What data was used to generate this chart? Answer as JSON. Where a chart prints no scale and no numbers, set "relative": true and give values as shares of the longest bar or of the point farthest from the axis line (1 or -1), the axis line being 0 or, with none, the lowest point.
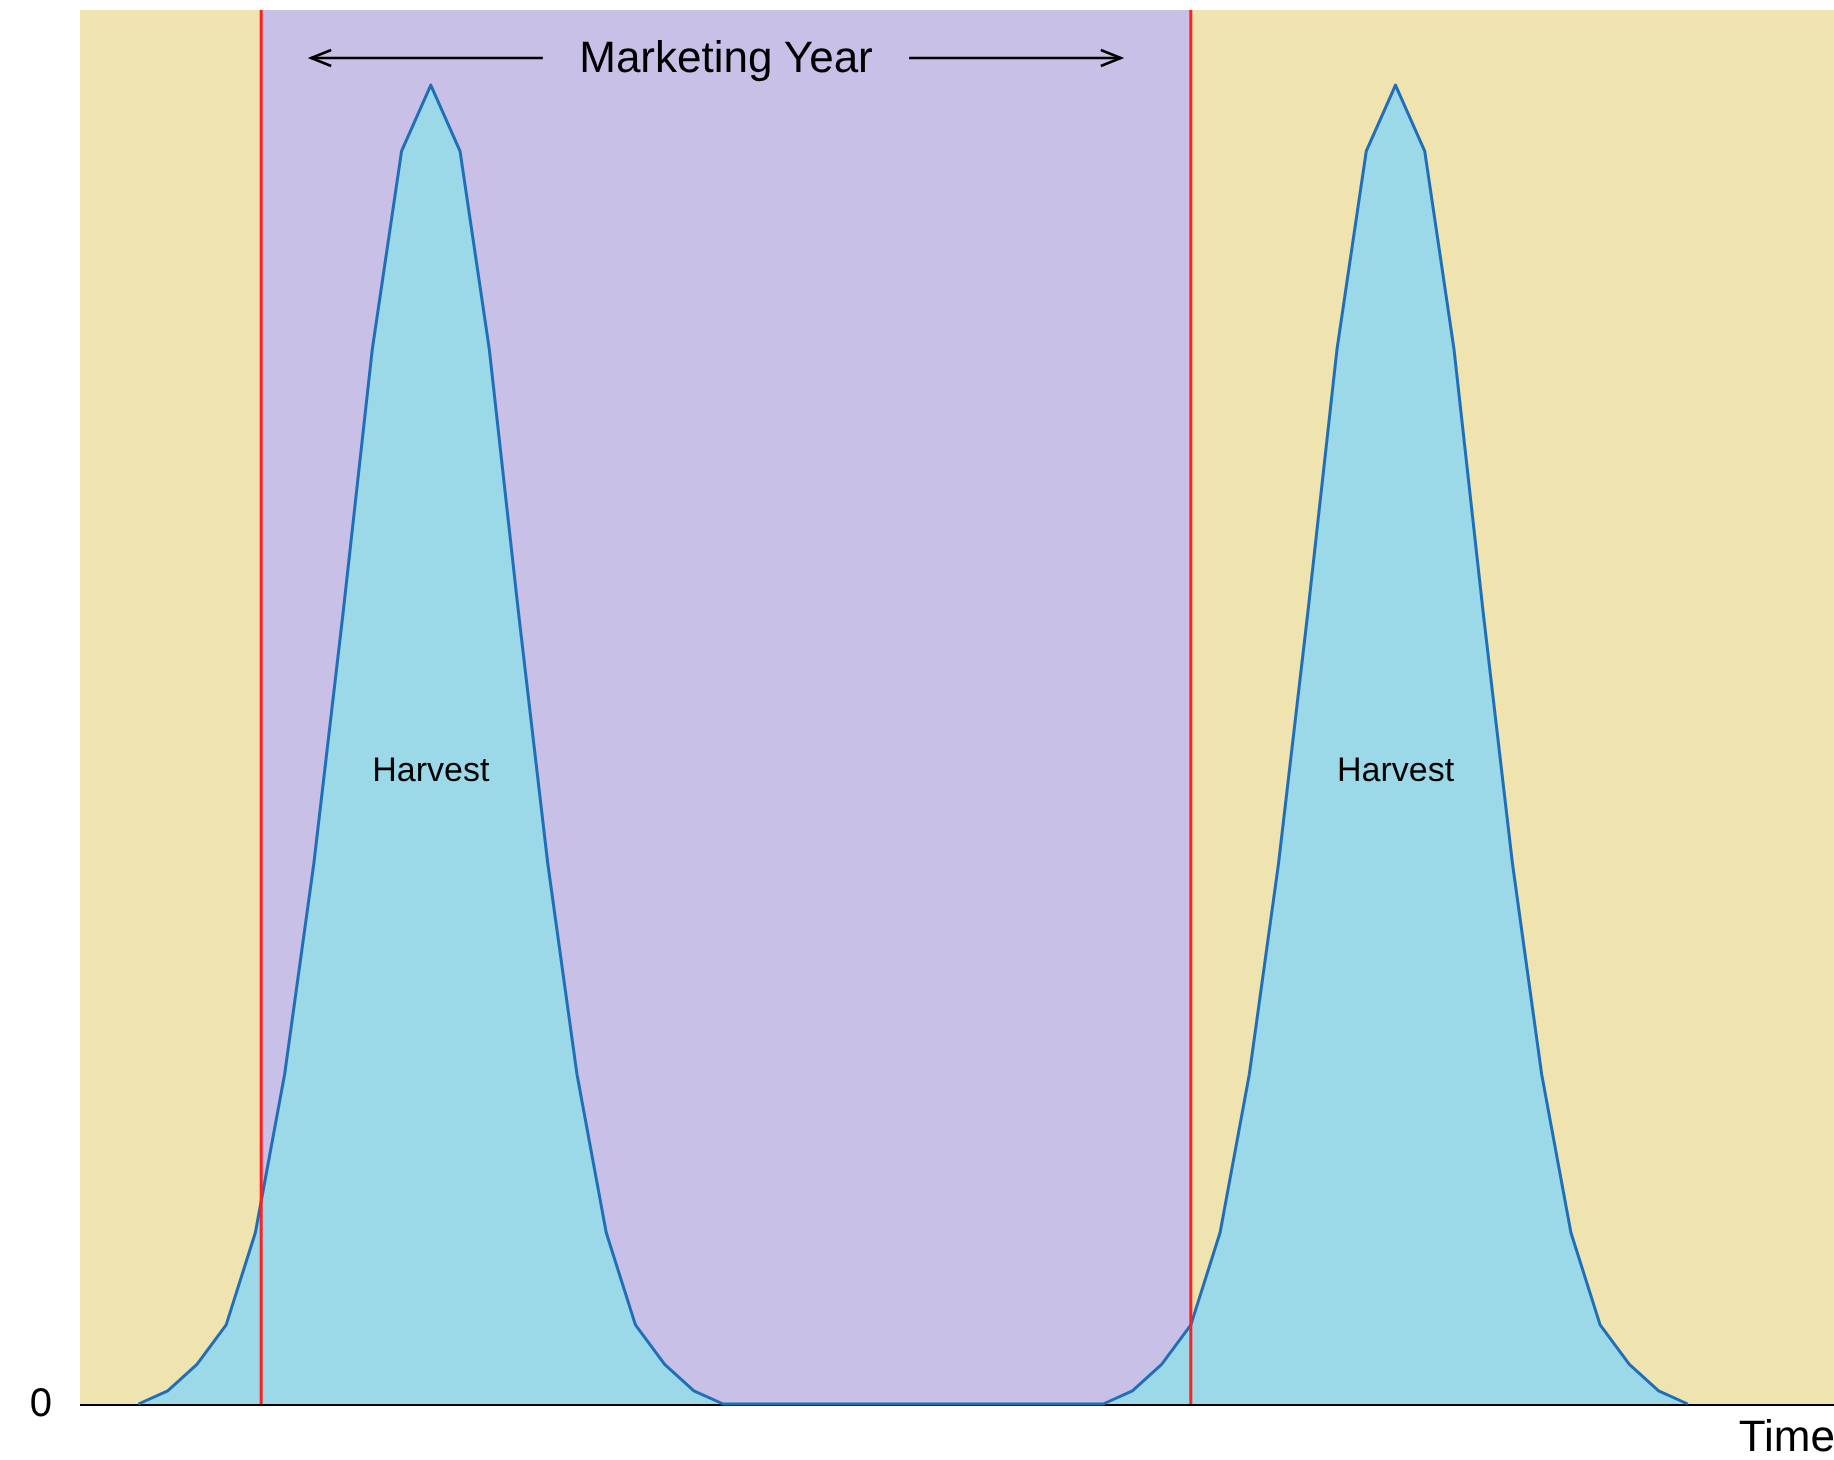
{
  "chart_data": {
    "type": "area",
    "relative": true,
    "xlabel": "Time",
    "categories": [
      null,
      null,
      null,
      null,
      null,
      null,
      null,
      null,
      null,
      null,
      null,
      null,
      null,
      null,
      null,
      null,
      null,
      null,
      null,
      null,
      null,
      null,
      null,
      null,
      null,
      null,
      null,
      null,
      null,
      null,
      null,
      null,
      null,
      null,
      null,
      null,
      null,
      null,
      null,
      null,
      null,
      null,
      null,
      null,
      null,
      null,
      null,
      null,
      null,
      null,
      null,
      null,
      null,
      null,
      null,
      null,
      null,
      null,
      null,
      null,
      null
    ],
    "series": [
      {
        "color": "#9bd8e8",
        "values": [
          null,
          null,
          0,
          0.01,
          0.03,
          0.06,
          0.13,
          0.25,
          0.41,
          0.6,
          0.8,
          0.95,
          1,
          0.95,
          0.8,
          0.6,
          0.41,
          0.25,
          0.13,
          0.06,
          0.03,
          0.01,
          0,
          0,
          0,
          0,
          0,
          0,
          0,
          0,
          0,
          0,
          0,
          0,
          0,
          0,
          0.01,
          0.03,
          0.06,
          0.13,
          0.25,
          0.41,
          0.6,
          0.8,
          0.95,
          1,
          0.95,
          0.8,
          0.6,
          0.41,
          0.25,
          0.13,
          0.06,
          0.03,
          0.01,
          0,
          null,
          null,
          null,
          null,
          null
        ]
      }
    ],
    "annotations": [
      "Harvest",
      "Harvest",
      "Marketing Year",
      "0"
    ]
  }
}
